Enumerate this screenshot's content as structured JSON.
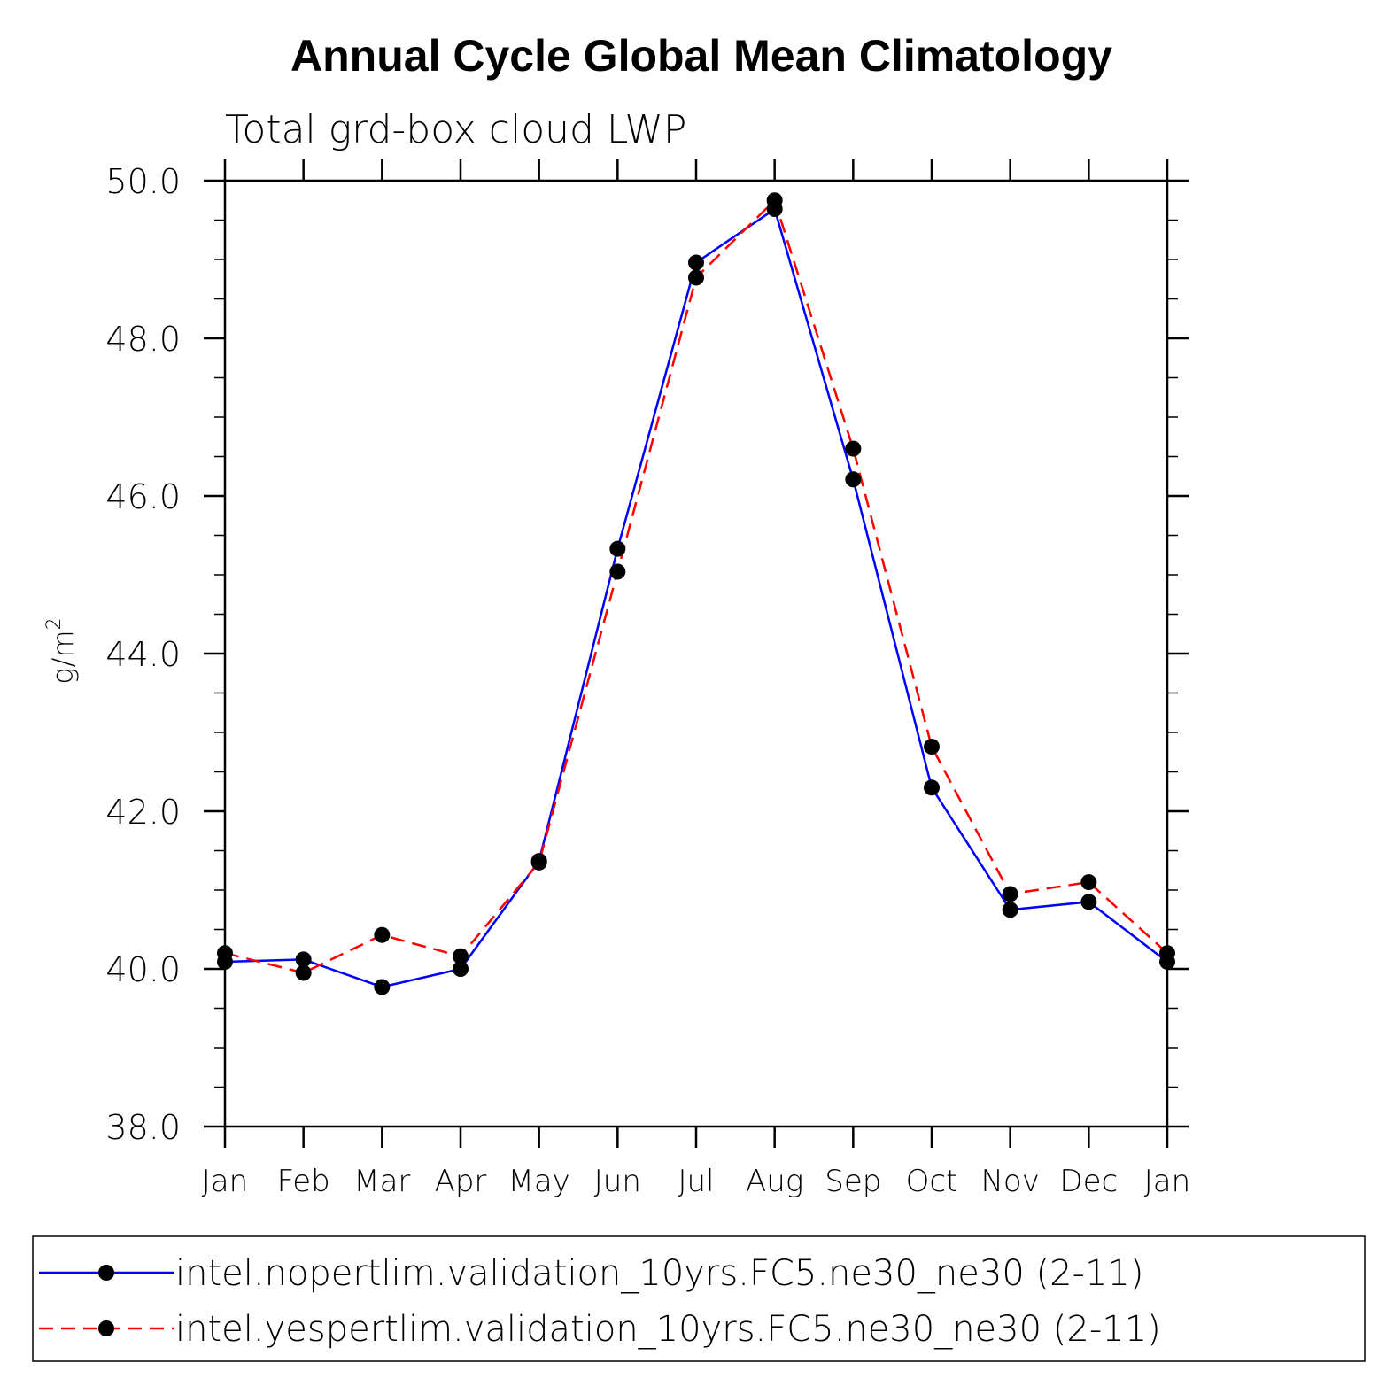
{
  "chart_data": {
    "type": "line",
    "title": "Annual Cycle Global Mean Climatology",
    "subtitle": "Total grd-box cloud LWP",
    "ylabel": "g/m",
    "ylabel_sup": "2",
    "ylim": [
      38.0,
      50.0
    ],
    "ytick_values": [
      38.0,
      40.0,
      42.0,
      44.0,
      46.0,
      48.0,
      50.0
    ],
    "ytick_labels": [
      "38.0",
      "40.0",
      "42.0",
      "44.0",
      "46.0",
      "48.0",
      "50.0"
    ],
    "categories": [
      "Jan",
      "Feb",
      "Mar",
      "Apr",
      "May",
      "Jun",
      "Jul",
      "Aug",
      "Sep",
      "Oct",
      "Nov",
      "Dec",
      "Jan"
    ],
    "series": [
      {
        "name": "intel.nopertlim.validation_10yrs.FC5.ne30_ne30 (2-11)",
        "color": "#0000ff",
        "dash": "solid",
        "values": [
          40.09,
          40.12,
          39.77,
          40.0,
          41.37,
          45.33,
          48.96,
          49.64,
          46.21,
          42.3,
          40.75,
          40.85,
          40.09
        ]
      },
      {
        "name": "intel.yespertlim.validation_10yrs.FC5.ne30_ne30 (2-11)",
        "color": "#ff0000",
        "dash": "dashed",
        "values": [
          40.2,
          39.95,
          40.43,
          40.16,
          41.35,
          45.04,
          48.77,
          49.75,
          46.6,
          42.82,
          40.95,
          41.1,
          40.2
        ]
      }
    ]
  }
}
